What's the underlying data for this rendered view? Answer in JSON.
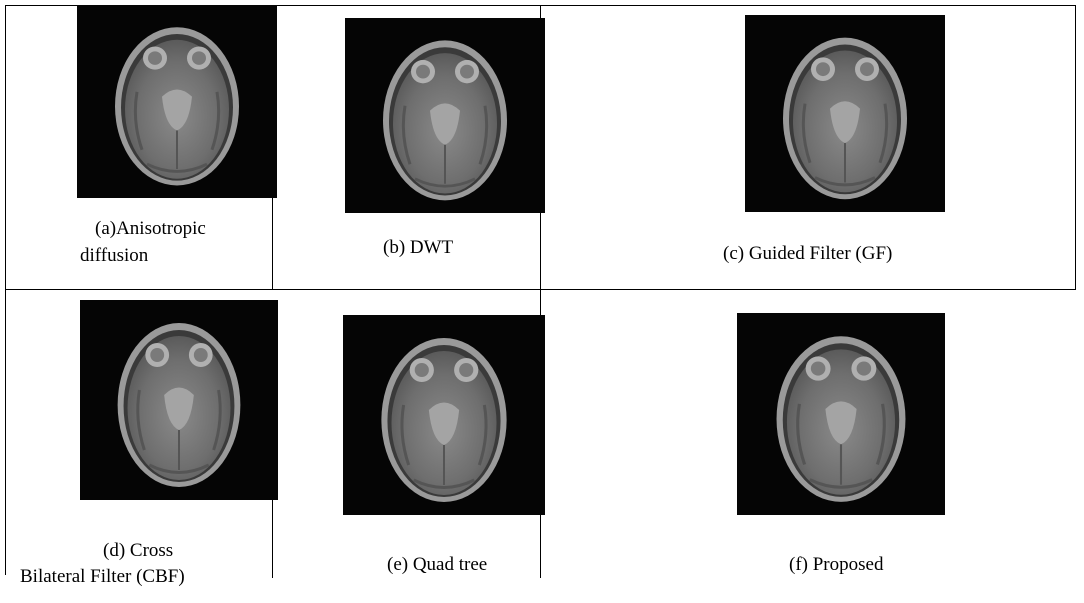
{
  "figure": {
    "panels": [
      {
        "caption": [
          "(a)Anisotropic",
          "diffusion"
        ]
      },
      {
        "caption": [
          "(b) DWT"
        ]
      },
      {
        "caption": [
          "(c) Guided Filter (GF)"
        ]
      },
      {
        "caption": [
          "(d) Cross",
          "Bilateral Filter (CBF)"
        ]
      },
      {
        "caption": [
          "(e) Quad tree"
        ]
      },
      {
        "caption": [
          "(f) Proposed"
        ]
      }
    ]
  }
}
